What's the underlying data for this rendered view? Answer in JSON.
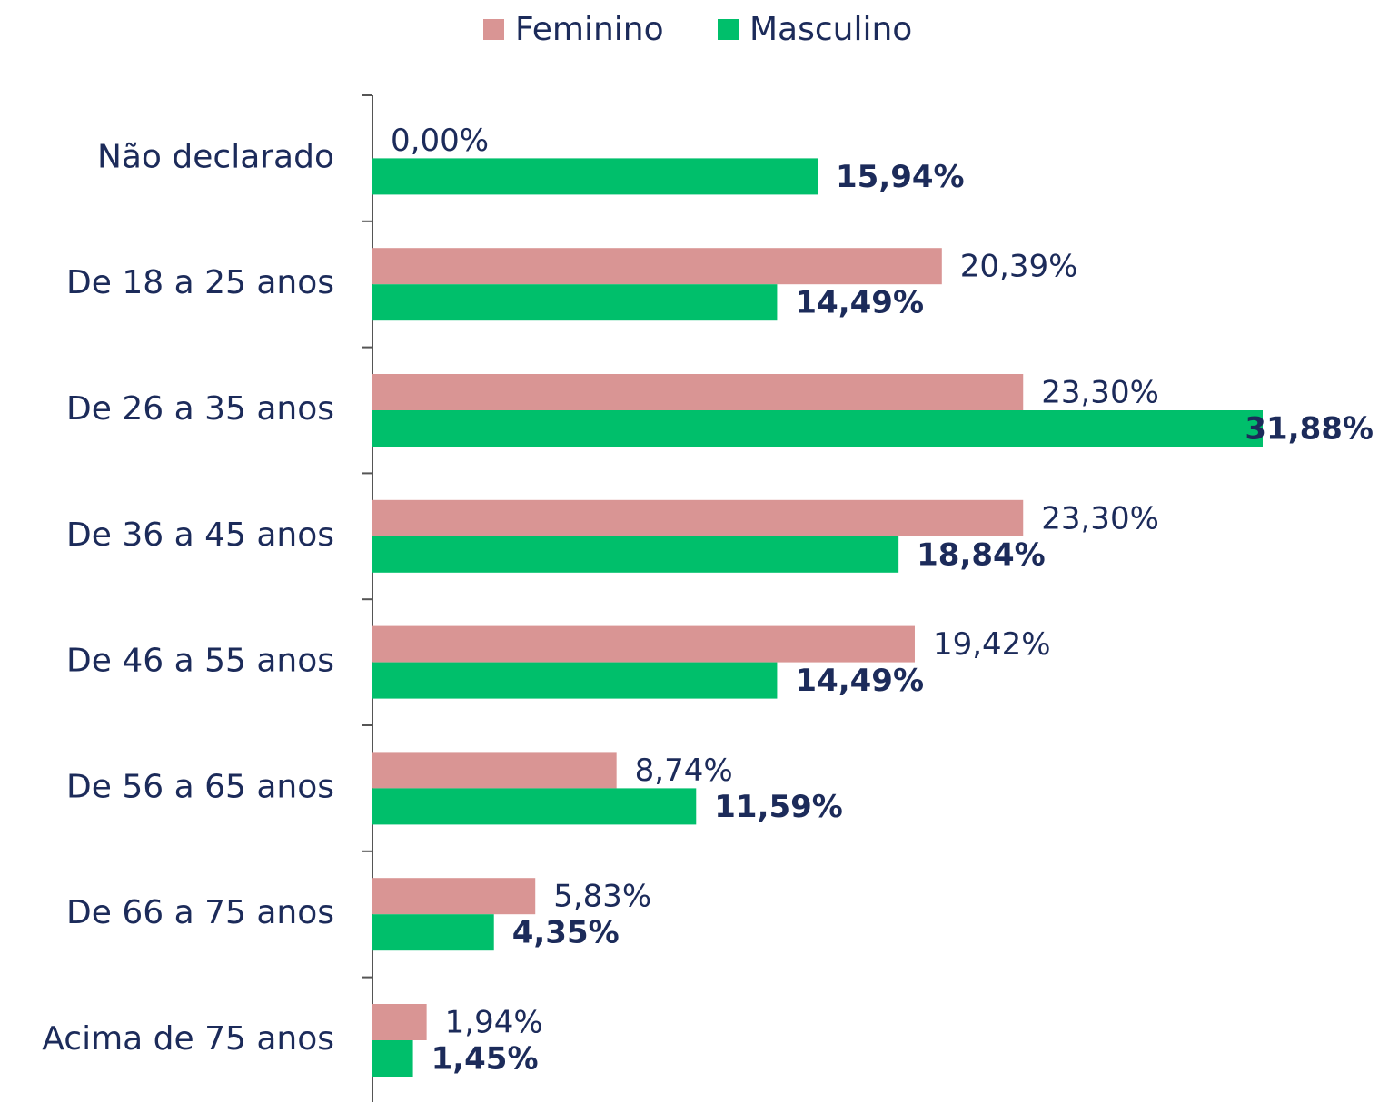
{
  "chart_data": {
    "type": "hbar",
    "categories": [
      "Não declarado",
      "De 18 a 25 anos",
      "De 26 a 35 anos",
      "De 36 a 45 anos",
      "De 46 a 55 anos",
      "De 56 a 65 anos",
      "De 66 a 75 anos",
      "Acima de 75 anos"
    ],
    "series": [
      {
        "name": "Feminino",
        "color": "#d99594",
        "values": [
          0,
          20.39,
          23.3,
          23.3,
          19.42,
          8.74,
          5.83,
          1.94
        ],
        "value_labels": [
          "0,00%",
          "20,39%",
          "23,30%",
          "23,30%",
          "19,42%",
          "8,74%",
          "5,83%",
          "1,94%"
        ]
      },
      {
        "name": "Masculino",
        "color": "#00bf6b",
        "values": [
          15.94,
          14.49,
          31.88,
          18.84,
          14.49,
          11.59,
          4.35,
          1.45
        ],
        "value_labels": [
          "15,94%",
          "14,49%",
          "31,88%",
          "18,84%",
          "14,49%",
          "11,59%",
          "4,35%",
          "1,45%"
        ]
      }
    ],
    "legend": "top"
  }
}
